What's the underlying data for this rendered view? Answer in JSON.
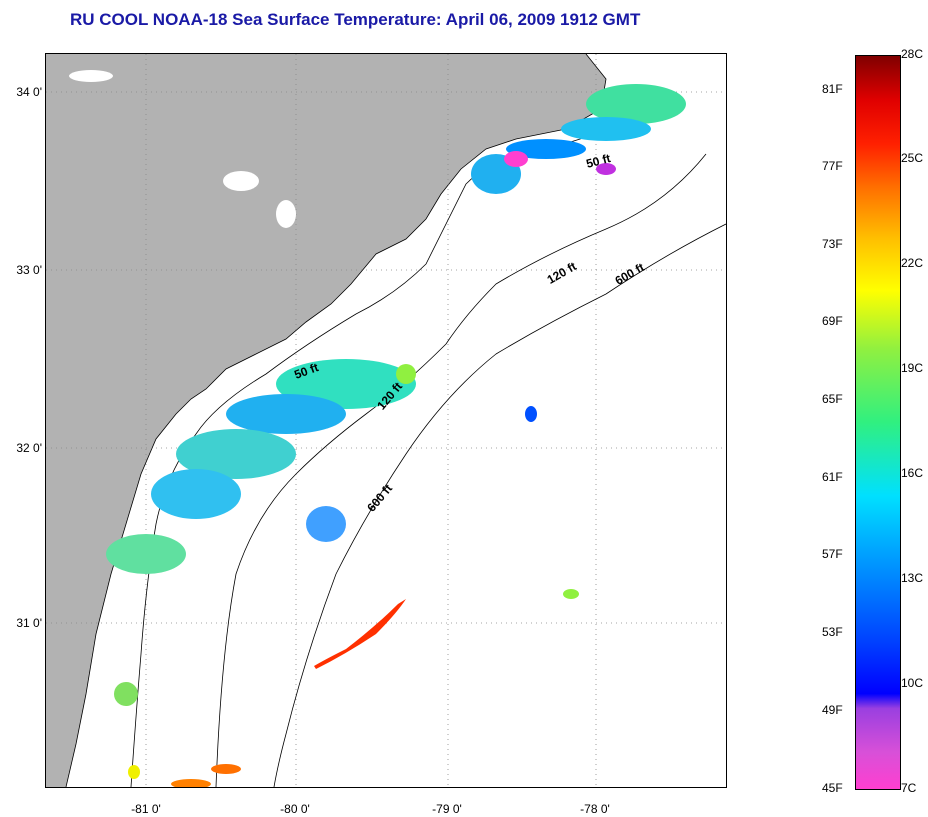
{
  "title": "RU COOL  NOAA-18  Sea Surface Temperature:  April 06, 2009 1912 GMT",
  "latitude_labels": [
    "34 0'",
    "33 0'",
    "32 0'",
    "31 0'"
  ],
  "longitude_labels": [
    "-81 0'",
    "-80 0'",
    "-79 0'",
    "-78 0'"
  ],
  "contour_labels": [
    "50 ft",
    "120 ft",
    "600 ft",
    "50 ft",
    "120 ft",
    "600 ft"
  ],
  "colorbar": {
    "fahrenheit": [
      "81F",
      "77F",
      "73F",
      "69F",
      "65F",
      "61F",
      "57F",
      "53F",
      "49F",
      "45F"
    ],
    "celsius": [
      "28C",
      "25C",
      "22C",
      "19C",
      "16C",
      "13C",
      "10C",
      "7C"
    ]
  },
  "colors": {
    "land": "#b2b2b2",
    "title": "#1a1aa6",
    "cloud_mask": "#ffffff"
  }
}
